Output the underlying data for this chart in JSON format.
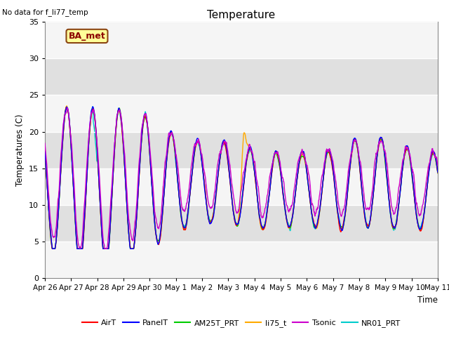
{
  "title": "Temperature",
  "ylabel": "Temperatures (C)",
  "xlabel": "Time",
  "ylim": [
    0,
    35
  ],
  "yticks": [
    0,
    5,
    10,
    15,
    20,
    25,
    30,
    35
  ],
  "fig_facecolor": "#ffffff",
  "plot_facecolor": "#e8e8e8",
  "note_text": "No data for f_li77_temp",
  "annotation_text": "BA_met",
  "series": {
    "AirT": {
      "color": "#ff0000",
      "lw": 1.0,
      "zorder": 5
    },
    "PanelT": {
      "color": "#0000ff",
      "lw": 1.0,
      "zorder": 6
    },
    "AM25T_PRT": {
      "color": "#00cc00",
      "lw": 1.0,
      "zorder": 4
    },
    "li75_t": {
      "color": "#ffaa00",
      "lw": 1.0,
      "zorder": 3
    },
    "Tsonic": {
      "color": "#cc00cc",
      "lw": 1.0,
      "zorder": 7
    },
    "NR01_PRT": {
      "color": "#00cccc",
      "lw": 1.0,
      "zorder": 2
    }
  },
  "tick_labels": [
    "Apr 26",
    "Apr 27",
    "Apr 28",
    "Apr 29",
    "Apr 30",
    "May 1",
    "May 2",
    "May 3",
    "May 4",
    "May 5",
    "May 6",
    "May 7",
    "May 8",
    "May 9",
    "May 10",
    "May 11"
  ],
  "n_days": 15,
  "pts_per_day": 96
}
